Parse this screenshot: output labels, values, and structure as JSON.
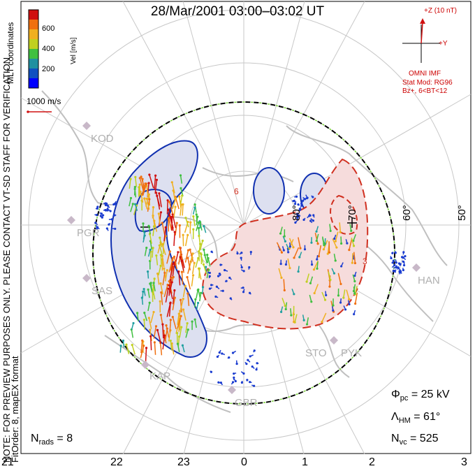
{
  "title": "28/Mar/2001 03:00–03:02 UT",
  "coords_label": "MLT coordinates",
  "preview_note": "NOTE: FOR PREVIEW PURPOSES ONLY. PLEASE CONTACT VT-SD STAFF FOR VERIFICATION.",
  "fit_note": "FitOrder: 8, mapEX format",
  "colorbar": {
    "label": "Vel [m/s]",
    "ticks": [
      "600",
      "400",
      "200"
    ],
    "colors": [
      "#d01010",
      "#f07010",
      "#f0b020",
      "#c0d020",
      "#40c040",
      "#2090a0",
      "#1050c0",
      "#0000ff"
    ]
  },
  "scale_vector_label": "1000 m/s",
  "imf": {
    "z_label": "+Z (10 nT)",
    "y_label": "+Y",
    "source": "OMNI IMF",
    "model_line1": "Stat Mod: RG96",
    "model_line2": "Bz+, 6<BT<12"
  },
  "latitudes": [
    "80°",
    "70°",
    "60°",
    "50°"
  ],
  "stations": [
    "KOD",
    "PGR",
    "SAS",
    "KAP",
    "GBR",
    "STO",
    "PYK",
    "HAN"
  ],
  "stats": {
    "phi_label": "Φ",
    "phi_sub": "pc",
    "phi_value": "= 25 kV",
    "lambda_label": "Λ",
    "lambda_sub": "HM",
    "lambda_value": "= 61°",
    "nvc_label": "N",
    "nvc_sub": "vc",
    "nvc_value": "= 525",
    "nrads_label": "N",
    "nrads_sub": "rads",
    "nrads_value": "= 8"
  },
  "mlt_labels": [
    "21",
    "22",
    "23",
    "0",
    "1",
    "2",
    "3"
  ],
  "colors": {
    "negative_cell": "#1030b0",
    "positive_cell": "#d03020",
    "negative_fill": "#dde0f0",
    "positive_fill": "#f6dcdc",
    "grid": "#c8c8c8",
    "land": "#c0c0c0",
    "boundary": "#000000"
  }
}
